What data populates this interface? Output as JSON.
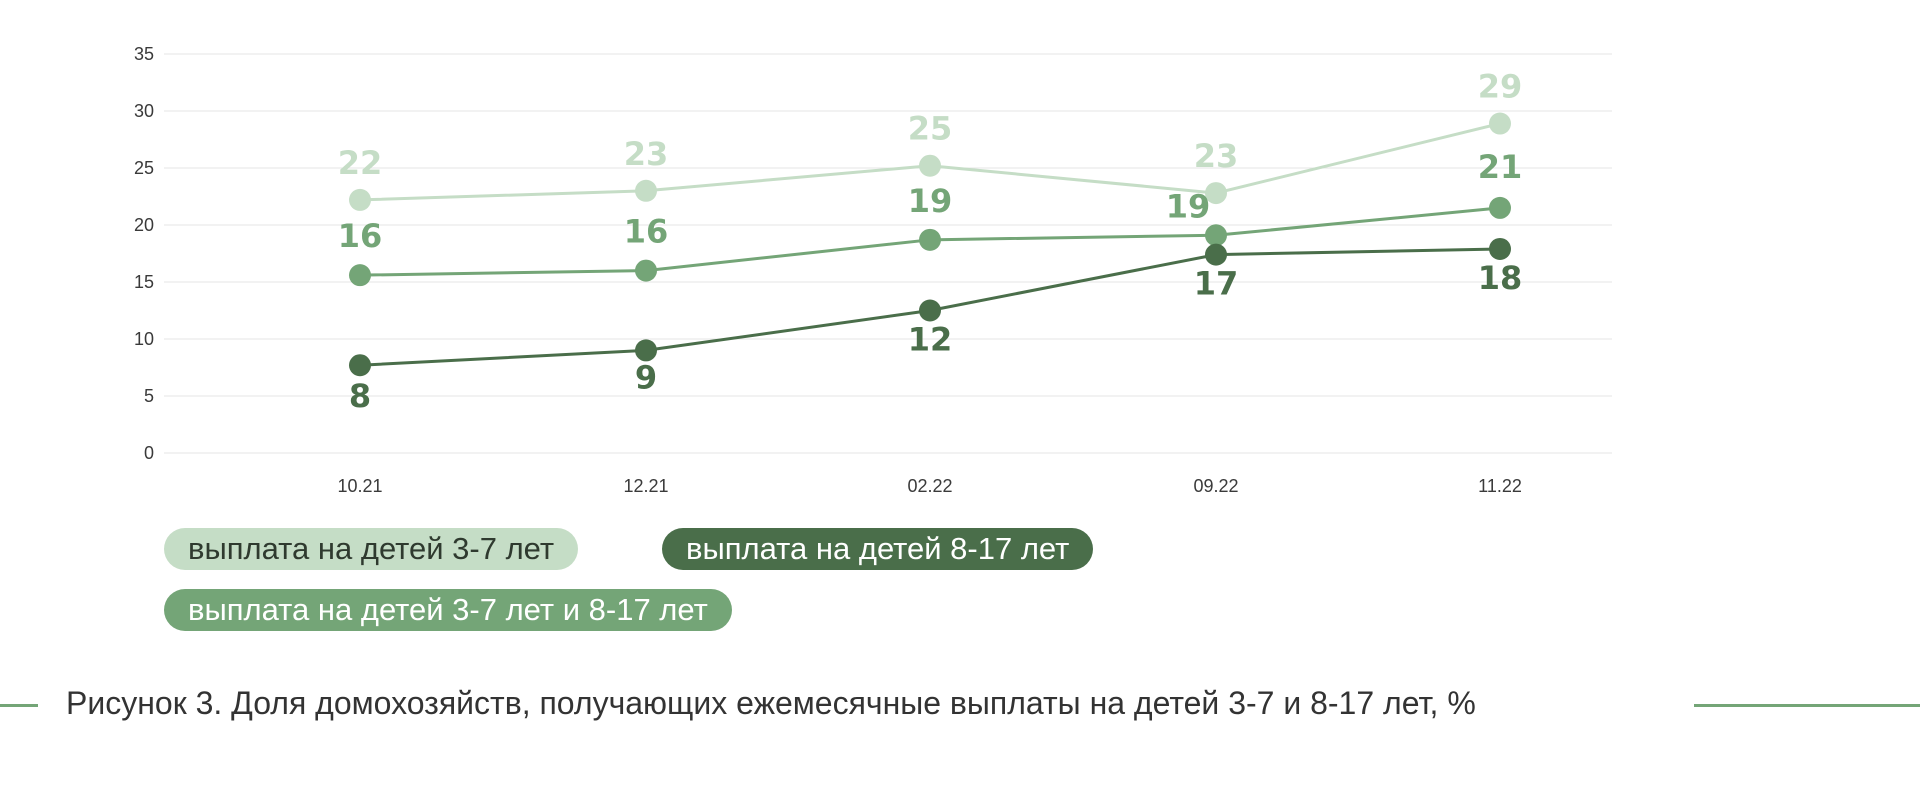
{
  "chart_data": {
    "type": "line",
    "categories": [
      "10.21",
      "12.21",
      "02.22",
      "09.22",
      "11.22"
    ],
    "ylim": [
      0,
      35
    ],
    "yticks": [
      0,
      5,
      10,
      15,
      20,
      25,
      30,
      35
    ],
    "grid": true,
    "series": [
      {
        "name": "выплата на детей 3-7 лет",
        "color": "#c5ddc6",
        "text_color": "#2f3a2f",
        "values": [
          22.2,
          23.0,
          25.2,
          22.8,
          28.9
        ],
        "labels": [
          "22",
          "23",
          "25",
          "23",
          "29"
        ]
      },
      {
        "name": "выплата на детей 3-7 лет и 8-17 лет",
        "color": "#74a577",
        "text_color": "#ffffff",
        "values": [
          15.6,
          16.0,
          18.7,
          19.1,
          21.5
        ],
        "labels": [
          "16",
          "16",
          "19",
          "19",
          "21"
        ]
      },
      {
        "name": "выплата на детей 8-17 лет",
        "color": "#4a6e4a",
        "text_color": "#ffffff",
        "values": [
          7.7,
          9.0,
          12.5,
          17.4,
          17.9
        ],
        "labels": [
          "8",
          "9",
          "12",
          "17",
          "18"
        ]
      }
    ]
  },
  "legend": {
    "item1": "выплата на детей 3-7 лет",
    "item2": "выплата на детей 8-17 лет",
    "item3": "выплата на детей 3-7 лет и 8-17 лет"
  },
  "caption": {
    "text": "Рисунок 3. Доля домохозяйств, получающих ежемесячные выплаты на детей 3-7 и 8-17 лет, %",
    "line_color": "#74a577"
  }
}
